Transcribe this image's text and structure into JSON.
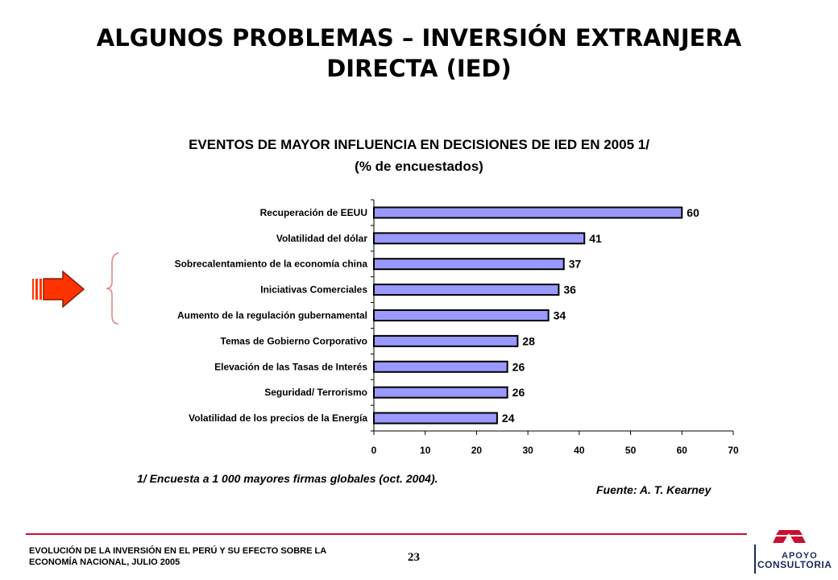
{
  "header": {
    "title_line1": "ALGUNOS PROBLEMAS – INVERSIÓN EXTRANJERA",
    "title_line2": "DIRECTA (IED)"
  },
  "chart_data": {
    "type": "bar",
    "orientation": "horizontal",
    "title": "EVENTOS DE MAYOR INFLUENCIA EN DECISIONES DE IED EN 2005 1/",
    "subtitle": "(% de encuestados)",
    "categories": [
      "Recuperación de EEUU",
      "Volatilidad del dólar",
      "Sobrecalentamiento  de la economía china",
      "Iniciativas Comerciales",
      "Aumento de la regulación gubernamental",
      "Temas de Gobierno Corporativo",
      "Elevación de las Tasas de Interés",
      "Seguridad/ Terrorismo",
      "Volatilidad de los precios de la Energía"
    ],
    "values": [
      60,
      41,
      37,
      36,
      34,
      28,
      26,
      26,
      24
    ],
    "data_labels": [
      "60",
      "41",
      "37",
      "36",
      "34",
      "28",
      "26",
      "26",
      "24"
    ],
    "xlim": [
      0,
      70
    ],
    "xticks": [
      "0",
      "10",
      "20",
      "30",
      "40",
      "50",
      "60",
      "70"
    ],
    "xlabel": "",
    "ylabel": "",
    "grid": false,
    "bar_color": "#9999ff",
    "bar_edge_color": "#000000",
    "highlighted_categories": [
      2,
      3,
      4
    ]
  },
  "notes": {
    "footnote": "1/ Encuesta a 1 000 mayores firmas globales (oct. 2004).",
    "source": "Fuente: A. T. Kearney"
  },
  "footer": {
    "doc_title_line1": "EVOLUCIÓN DE LA INVERSIÓN EN EL PERÚ Y SU EFECTO SOBRE LA",
    "doc_title_line2": "ECONOMÍA NACIONAL, JULIO 2005",
    "page_number": "23",
    "logo_line1": "APOYO",
    "logo_line2": "CONSULTORIA"
  },
  "colors": {
    "accent_red": "#c8102e",
    "arrow_red": "#ff3300",
    "logo_navy": "#1a2a5a",
    "brace": "#e08080"
  },
  "icons": {
    "highlight_arrow": "right-arrow-icon",
    "brace": "bracket-icon",
    "logo": "apoyo-logo-icon"
  }
}
